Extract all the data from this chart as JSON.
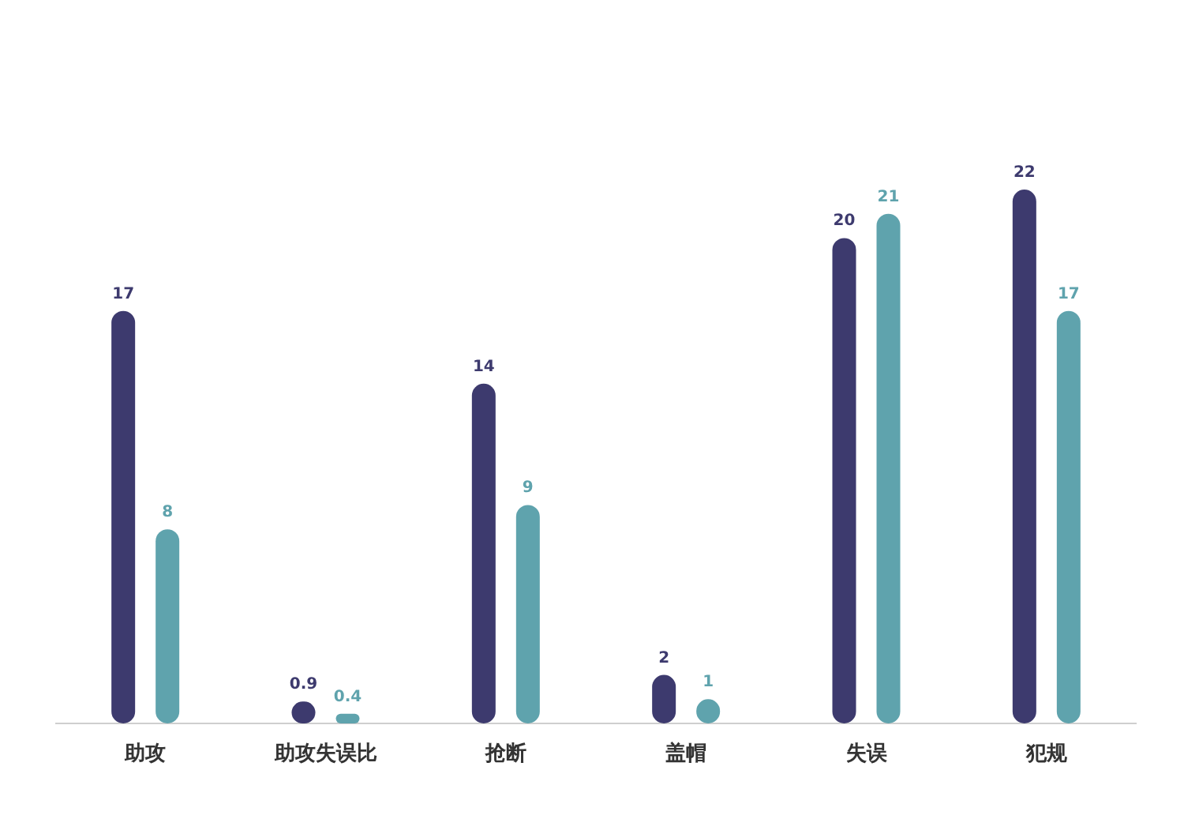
{
  "chart_data": {
    "type": "bar",
    "categories": [
      "助攻",
      "助攻失误比",
      "抢断",
      "盖帽",
      "失误",
      "犯规"
    ],
    "series": [
      {
        "color": "#3d3a6e",
        "values": [
          17,
          0.9,
          14,
          2,
          20,
          22
        ]
      },
      {
        "color": "#5fa3ad",
        "values": [
          8,
          0.4,
          9,
          1,
          21,
          17
        ]
      }
    ],
    "data_labels": true
  }
}
